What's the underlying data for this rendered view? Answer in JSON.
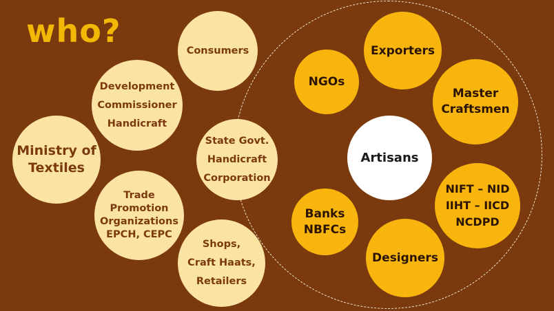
{
  "title": "who?",
  "colors": {
    "background": "#7b3a0e",
    "cream_bubble": "#fbe3a3",
    "gold_bubble": "#f8b50d",
    "center_bubble": "#ffffff",
    "title": "#f3b705"
  },
  "outer_stakeholders": {
    "consumers": [
      "Consumers"
    ],
    "development_commissioner": [
      "Development",
      "Commissioner",
      "Handicraft"
    ],
    "ministry_of_textiles": [
      "Ministry of",
      "Textiles"
    ],
    "state_govt": [
      "State Govt.",
      "Handicraft",
      "Corporation"
    ],
    "trade_promotion": [
      "Trade",
      "Promotion",
      "Organizations",
      "EPCH, CEPC"
    ],
    "shops": [
      "Shops,",
      "Craft Haats,",
      "Retailers"
    ]
  },
  "inner_stakeholders": {
    "exporters": [
      "Exporters"
    ],
    "ngos": [
      "NGOs"
    ],
    "master_craftsmen": [
      "Master",
      "Craftsmen"
    ],
    "institutes": [
      "NIFT – NID",
      "IIHT – IICD",
      "NCDPD"
    ],
    "banks": [
      "Banks",
      "NBFCs"
    ],
    "designers": [
      "Designers"
    ]
  },
  "center": {
    "label": "Artisans"
  }
}
